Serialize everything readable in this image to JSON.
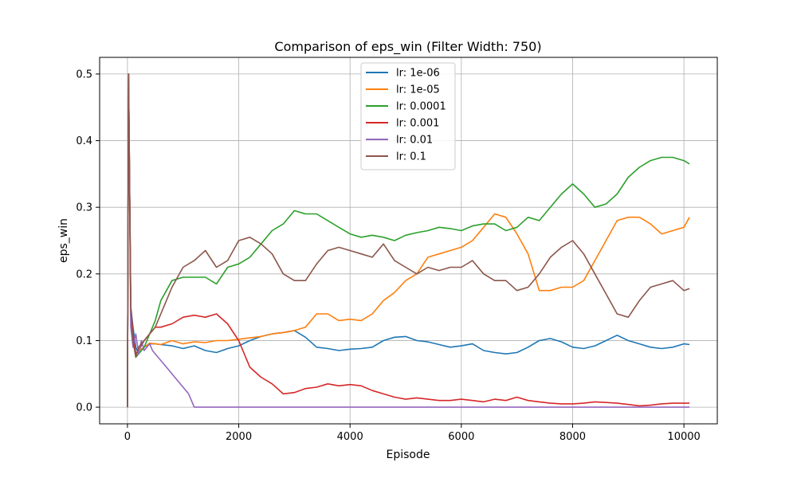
{
  "chart_data": {
    "type": "line",
    "title": "Comparison of eps_win (Filter Width: 750)",
    "xlabel": "Episode",
    "ylabel": "eps_win",
    "xlim": [
      -500,
      10600
    ],
    "ylim": [
      -0.025,
      0.525
    ],
    "x_ticks": [
      0,
      2000,
      4000,
      6000,
      8000,
      10000
    ],
    "x_tick_labels": [
      "0",
      "2000",
      "4000",
      "6000",
      "8000",
      "10000"
    ],
    "y_ticks": [
      0.0,
      0.1,
      0.2,
      0.3,
      0.4,
      0.5
    ],
    "y_tick_labels": [
      "0.0",
      "0.1",
      "0.2",
      "0.3",
      "0.4",
      "0.5"
    ],
    "grid": true,
    "legend_position": "top-center",
    "series": [
      {
        "name": "lr: 1e-06",
        "color": "#1f77b4",
        "x": [
          0,
          20,
          60,
          100,
          150,
          200,
          300,
          400,
          500,
          600,
          800,
          1000,
          1200,
          1400,
          1600,
          1800,
          2000,
          2200,
          2400,
          2600,
          2800,
          3000,
          3200,
          3400,
          3600,
          3800,
          4000,
          4200,
          4400,
          4600,
          4800,
          5000,
          5200,
          5400,
          5600,
          5800,
          6000,
          6200,
          6400,
          6600,
          6800,
          7000,
          7200,
          7400,
          7600,
          7800,
          8000,
          8200,
          8400,
          8600,
          8800,
          9000,
          9200,
          9400,
          9600,
          9800,
          10000,
          10100
        ],
        "y": [
          0.0,
          0.5,
          0.15,
          0.12,
          0.09,
          0.08,
          0.09,
          0.095,
          0.095,
          0.094,
          0.092,
          0.088,
          0.092,
          0.085,
          0.082,
          0.088,
          0.092,
          0.1,
          0.106,
          0.11,
          0.112,
          0.115,
          0.105,
          0.09,
          0.088,
          0.085,
          0.087,
          0.088,
          0.09,
          0.1,
          0.105,
          0.106,
          0.1,
          0.098,
          0.094,
          0.09,
          0.092,
          0.095,
          0.085,
          0.082,
          0.08,
          0.082,
          0.09,
          0.1,
          0.103,
          0.098,
          0.09,
          0.088,
          0.092,
          0.1,
          0.108,
          0.1,
          0.095,
          0.09,
          0.088,
          0.09,
          0.095,
          0.094
        ]
      },
      {
        "name": "lr: 1e-05",
        "color": "#ff7f0e",
        "x": [
          0,
          20,
          60,
          100,
          150,
          200,
          300,
          400,
          500,
          600,
          800,
          1000,
          1200,
          1400,
          1600,
          1800,
          2000,
          2200,
          2400,
          2600,
          2800,
          3000,
          3200,
          3400,
          3600,
          3800,
          4000,
          4200,
          4400,
          4600,
          4800,
          5000,
          5200,
          5400,
          5600,
          5800,
          6000,
          6200,
          6400,
          6600,
          6800,
          7000,
          7200,
          7400,
          7600,
          7800,
          8000,
          8200,
          8400,
          8600,
          8800,
          9000,
          9200,
          9400,
          9600,
          9800,
          10000,
          10100
        ],
        "y": [
          0.0,
          0.5,
          0.14,
          0.11,
          0.08,
          0.085,
          0.09,
          0.096,
          0.095,
          0.094,
          0.1,
          0.095,
          0.098,
          0.097,
          0.1,
          0.1,
          0.102,
          0.104,
          0.106,
          0.11,
          0.112,
          0.115,
          0.12,
          0.14,
          0.14,
          0.13,
          0.132,
          0.13,
          0.14,
          0.16,
          0.172,
          0.19,
          0.2,
          0.225,
          0.23,
          0.235,
          0.24,
          0.25,
          0.27,
          0.29,
          0.285,
          0.26,
          0.23,
          0.175,
          0.175,
          0.18,
          0.18,
          0.19,
          0.22,
          0.25,
          0.28,
          0.285,
          0.285,
          0.275,
          0.26,
          0.265,
          0.27,
          0.285
        ]
      },
      {
        "name": "lr: 0.0001",
        "color": "#2ca02c",
        "x": [
          0,
          20,
          60,
          100,
          150,
          200,
          300,
          400,
          500,
          600,
          800,
          1000,
          1200,
          1400,
          1600,
          1800,
          2000,
          2200,
          2400,
          2600,
          2800,
          3000,
          3200,
          3400,
          3600,
          3800,
          4000,
          4200,
          4400,
          4600,
          4800,
          5000,
          5200,
          5400,
          5600,
          5800,
          6000,
          6200,
          6400,
          6600,
          6800,
          7000,
          7200,
          7400,
          7600,
          7800,
          8000,
          8200,
          8400,
          8600,
          8800,
          9000,
          9200,
          9400,
          9600,
          9800,
          10000,
          10100
        ],
        "y": [
          0.0,
          0.5,
          0.14,
          0.1,
          0.075,
          0.08,
          0.09,
          0.11,
          0.13,
          0.16,
          0.19,
          0.195,
          0.195,
          0.195,
          0.185,
          0.21,
          0.215,
          0.225,
          0.245,
          0.265,
          0.275,
          0.295,
          0.29,
          0.29,
          0.28,
          0.27,
          0.26,
          0.255,
          0.258,
          0.255,
          0.25,
          0.258,
          0.262,
          0.265,
          0.27,
          0.268,
          0.265,
          0.272,
          0.275,
          0.275,
          0.265,
          0.27,
          0.285,
          0.28,
          0.3,
          0.32,
          0.335,
          0.32,
          0.3,
          0.305,
          0.32,
          0.345,
          0.36,
          0.37,
          0.375,
          0.375,
          0.37,
          0.365
        ]
      },
      {
        "name": "lr: 0.001",
        "color": "#d62728",
        "x": [
          0,
          20,
          60,
          100,
          150,
          200,
          300,
          400,
          500,
          600,
          800,
          1000,
          1200,
          1400,
          1600,
          1800,
          2000,
          2200,
          2400,
          2600,
          2800,
          3000,
          3200,
          3400,
          3600,
          3800,
          4000,
          4200,
          4400,
          4600,
          4800,
          5000,
          5200,
          5400,
          5600,
          5800,
          6000,
          6200,
          6400,
          6600,
          6800,
          7000,
          7200,
          7400,
          7600,
          7800,
          8000,
          8200,
          8400,
          8600,
          8800,
          9000,
          9200,
          9400,
          9600,
          9800,
          10000,
          10100
        ],
        "y": [
          0.0,
          0.5,
          0.15,
          0.11,
          0.08,
          0.085,
          0.1,
          0.11,
          0.12,
          0.12,
          0.125,
          0.135,
          0.138,
          0.135,
          0.14,
          0.125,
          0.1,
          0.06,
          0.045,
          0.035,
          0.02,
          0.022,
          0.028,
          0.03,
          0.035,
          0.032,
          0.034,
          0.032,
          0.025,
          0.02,
          0.015,
          0.012,
          0.014,
          0.012,
          0.01,
          0.01,
          0.012,
          0.01,
          0.008,
          0.012,
          0.01,
          0.015,
          0.01,
          0.008,
          0.006,
          0.005,
          0.005,
          0.006,
          0.008,
          0.007,
          0.006,
          0.004,
          0.002,
          0.003,
          0.005,
          0.006,
          0.006,
          0.006
        ]
      },
      {
        "name": "lr: 0.01",
        "color": "#9467bd",
        "x": [
          0,
          20,
          60,
          100,
          150,
          200,
          250,
          300,
          350,
          400,
          450,
          500,
          600,
          700,
          800,
          900,
          1000,
          1100,
          1200,
          1300,
          1500,
          2000,
          3000,
          4000,
          5000,
          6000,
          7000,
          8000,
          9000,
          10000,
          10100
        ],
        "y": [
          0.0,
          0.5,
          0.12,
          0.09,
          0.11,
          0.08,
          0.1,
          0.085,
          0.09,
          0.095,
          0.085,
          0.08,
          0.07,
          0.06,
          0.05,
          0.04,
          0.03,
          0.02,
          0.0,
          0.0,
          0.0,
          0.0,
          0.0,
          0.0,
          0.0,
          0.0,
          0.0,
          0.0,
          0.0,
          0.0,
          0.0
        ]
      },
      {
        "name": "lr: 0.1",
        "color": "#8c564b",
        "x": [
          0,
          20,
          60,
          100,
          150,
          200,
          300,
          400,
          500,
          600,
          800,
          1000,
          1200,
          1400,
          1600,
          1800,
          2000,
          2200,
          2400,
          2600,
          2800,
          3000,
          3200,
          3400,
          3600,
          3800,
          4000,
          4200,
          4400,
          4600,
          4800,
          5000,
          5200,
          5400,
          5600,
          5800,
          6000,
          6200,
          6400,
          6600,
          6800,
          7000,
          7200,
          7400,
          7600,
          7800,
          8000,
          8200,
          8400,
          8600,
          8800,
          9000,
          9200,
          9400,
          9600,
          9800,
          10000,
          10100
        ],
        "y": [
          0.0,
          0.5,
          0.15,
          0.1,
          0.075,
          0.09,
          0.1,
          0.11,
          0.12,
          0.14,
          0.18,
          0.21,
          0.22,
          0.235,
          0.21,
          0.22,
          0.25,
          0.255,
          0.245,
          0.23,
          0.2,
          0.19,
          0.19,
          0.215,
          0.235,
          0.24,
          0.235,
          0.23,
          0.225,
          0.245,
          0.22,
          0.21,
          0.2,
          0.21,
          0.205,
          0.21,
          0.21,
          0.22,
          0.2,
          0.19,
          0.19,
          0.175,
          0.18,
          0.2,
          0.225,
          0.24,
          0.25,
          0.23,
          0.2,
          0.17,
          0.14,
          0.135,
          0.16,
          0.18,
          0.185,
          0.19,
          0.175,
          0.178
        ]
      }
    ]
  }
}
